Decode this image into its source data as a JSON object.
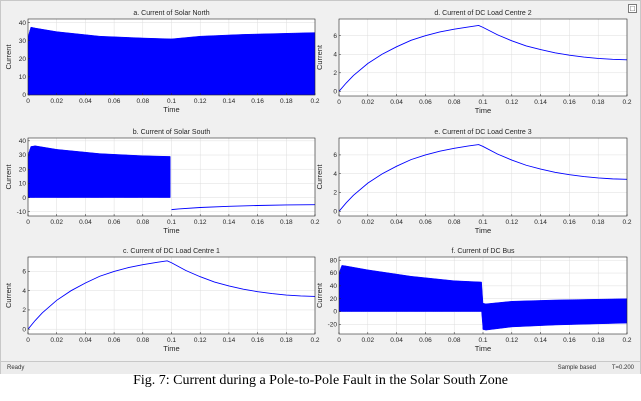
{
  "caption": "Fig. 7: Current during a Pole-to-Pole Fault in the Solar South Zone",
  "status": {
    "ready": "Ready",
    "sample": "Sample based",
    "time": "T=0.200"
  },
  "corner_icon": "dock-icon",
  "colors": {
    "series": "#0000ff",
    "axes_bg": "#ffffff",
    "window_bg": "#f0f0f0",
    "grid": "#dddddd"
  },
  "chart_data": [
    {
      "type": "line",
      "title": "a. Current of Solar North",
      "xlabel": "Time",
      "ylabel": "Current",
      "xlim": [
        0,
        0.2
      ],
      "ylim": [
        0,
        42
      ],
      "xticks": [
        0,
        0.02,
        0.04,
        0.06,
        0.08,
        0.1,
        0.12,
        0.14,
        0.16,
        0.18,
        0.2
      ],
      "yticks": [
        0,
        10,
        20,
        30,
        40
      ],
      "grid": true,
      "envelope": {
        "x": [
          0,
          0.002,
          0.005,
          0.02,
          0.05,
          0.08,
          0.1,
          0.12,
          0.15,
          0.2
        ],
        "upper": [
          32,
          37.5,
          37,
          35,
          32.5,
          31.5,
          31,
          32.5,
          33.5,
          34.5
        ],
        "lower": [
          0,
          0,
          0,
          0,
          0,
          0,
          0,
          0,
          0,
          0
        ]
      }
    },
    {
      "type": "line",
      "title": "b. Current of Solar South",
      "xlabel": "Time",
      "ylabel": "Current",
      "xlim": [
        0,
        0.2
      ],
      "ylim": [
        -13,
        42
      ],
      "xticks": [
        0,
        0.02,
        0.04,
        0.06,
        0.08,
        0.1,
        0.12,
        0.14,
        0.16,
        0.18,
        0.2
      ],
      "yticks": [
        -10,
        0,
        10,
        20,
        30,
        40
      ],
      "grid": true,
      "envelope": {
        "x": [
          0,
          0.002,
          0.005,
          0.02,
          0.05,
          0.08,
          0.099
        ],
        "upper": [
          30,
          36,
          36.5,
          34,
          31,
          29.5,
          29
        ],
        "lower": [
          0,
          0,
          0,
          0,
          0,
          0,
          0
        ]
      },
      "series": [
        {
          "x": [
            0.1,
            0.105,
            0.12,
            0.14,
            0.16,
            0.18,
            0.2
          ],
          "y": [
            -8.5,
            -8,
            -7,
            -6.2,
            -5.6,
            -5.2,
            -5
          ]
        }
      ]
    },
    {
      "type": "line",
      "title": "c. Current of DC Load Centre 1",
      "xlabel": "Time",
      "ylabel": "Current",
      "xlim": [
        0,
        0.2
      ],
      "ylim": [
        -0.5,
        7.5
      ],
      "xticks": [
        0,
        0.02,
        0.04,
        0.06,
        0.08,
        0.1,
        0.12,
        0.14,
        0.16,
        0.18,
        0.2
      ],
      "yticks": [
        0,
        2,
        4,
        6
      ],
      "grid": true,
      "series": [
        {
          "x": [
            0,
            0.005,
            0.01,
            0.02,
            0.03,
            0.04,
            0.05,
            0.06,
            0.07,
            0.08,
            0.09,
            0.097,
            0.1,
            0.11,
            0.12,
            0.13,
            0.14,
            0.15,
            0.16,
            0.17,
            0.18,
            0.19,
            0.2
          ],
          "y": [
            0,
            0.9,
            1.7,
            3.0,
            4.0,
            4.8,
            5.5,
            6.0,
            6.4,
            6.7,
            6.95,
            7.1,
            6.9,
            6.1,
            5.45,
            4.9,
            4.5,
            4.15,
            3.9,
            3.7,
            3.55,
            3.45,
            3.4
          ]
        }
      ]
    },
    {
      "type": "line",
      "title": "d. Current of DC Load Centre 2",
      "xlabel": "Time",
      "ylabel": "Current",
      "xlim": [
        0,
        0.2
      ],
      "ylim": [
        -0.5,
        7.8
      ],
      "xticks": [
        0,
        0.02,
        0.04,
        0.06,
        0.08,
        0.1,
        0.12,
        0.14,
        0.16,
        0.18,
        0.2
      ],
      "yticks": [
        0,
        2,
        4,
        6
      ],
      "grid": true,
      "series": [
        {
          "x": [
            0,
            0.005,
            0.01,
            0.02,
            0.03,
            0.04,
            0.05,
            0.06,
            0.07,
            0.08,
            0.09,
            0.097,
            0.1,
            0.11,
            0.12,
            0.13,
            0.14,
            0.15,
            0.16,
            0.17,
            0.18,
            0.19,
            0.2
          ],
          "y": [
            0,
            0.9,
            1.7,
            3.0,
            4.0,
            4.8,
            5.5,
            6.0,
            6.4,
            6.7,
            6.95,
            7.1,
            6.9,
            6.1,
            5.45,
            4.9,
            4.5,
            4.15,
            3.9,
            3.7,
            3.55,
            3.45,
            3.4
          ]
        }
      ]
    },
    {
      "type": "line",
      "title": "e. Current of DC Load Centre 3",
      "xlabel": "Time",
      "ylabel": "Current",
      "xlim": [
        0,
        0.2
      ],
      "ylim": [
        -0.5,
        7.8
      ],
      "xticks": [
        0,
        0.02,
        0.04,
        0.06,
        0.08,
        0.1,
        0.12,
        0.14,
        0.16,
        0.18,
        0.2
      ],
      "yticks": [
        0,
        2,
        4,
        6
      ],
      "grid": true,
      "series": [
        {
          "x": [
            0,
            0.005,
            0.01,
            0.02,
            0.03,
            0.04,
            0.05,
            0.06,
            0.07,
            0.08,
            0.09,
            0.097,
            0.1,
            0.11,
            0.12,
            0.13,
            0.14,
            0.15,
            0.16,
            0.17,
            0.18,
            0.19,
            0.2
          ],
          "y": [
            0,
            0.9,
            1.7,
            3.0,
            4.0,
            4.8,
            5.5,
            6.0,
            6.4,
            6.7,
            6.95,
            7.1,
            6.9,
            6.1,
            5.45,
            4.9,
            4.5,
            4.15,
            3.9,
            3.7,
            3.55,
            3.45,
            3.4
          ]
        }
      ]
    },
    {
      "type": "line",
      "title": "f. Current of DC Bus",
      "xlabel": "Time",
      "ylabel": "Current",
      "xlim": [
        0,
        0.2
      ],
      "ylim": [
        -35,
        85
      ],
      "xticks": [
        0,
        0.02,
        0.04,
        0.06,
        0.08,
        0.1,
        0.12,
        0.14,
        0.16,
        0.18,
        0.2
      ],
      "yticks": [
        -20,
        0,
        20,
        40,
        60,
        80
      ],
      "grid": true,
      "envelope": {
        "x": [
          0,
          0.002,
          0.005,
          0.02,
          0.05,
          0.08,
          0.099,
          0.1,
          0.102,
          0.12,
          0.15,
          0.2
        ],
        "upper": [
          60,
          72,
          71,
          65,
          55,
          48,
          46,
          13,
          12,
          16,
          18,
          20
        ],
        "lower": [
          0,
          0,
          0,
          0,
          0,
          0,
          0,
          -28,
          -29,
          -24,
          -21,
          -18
        ]
      }
    }
  ]
}
